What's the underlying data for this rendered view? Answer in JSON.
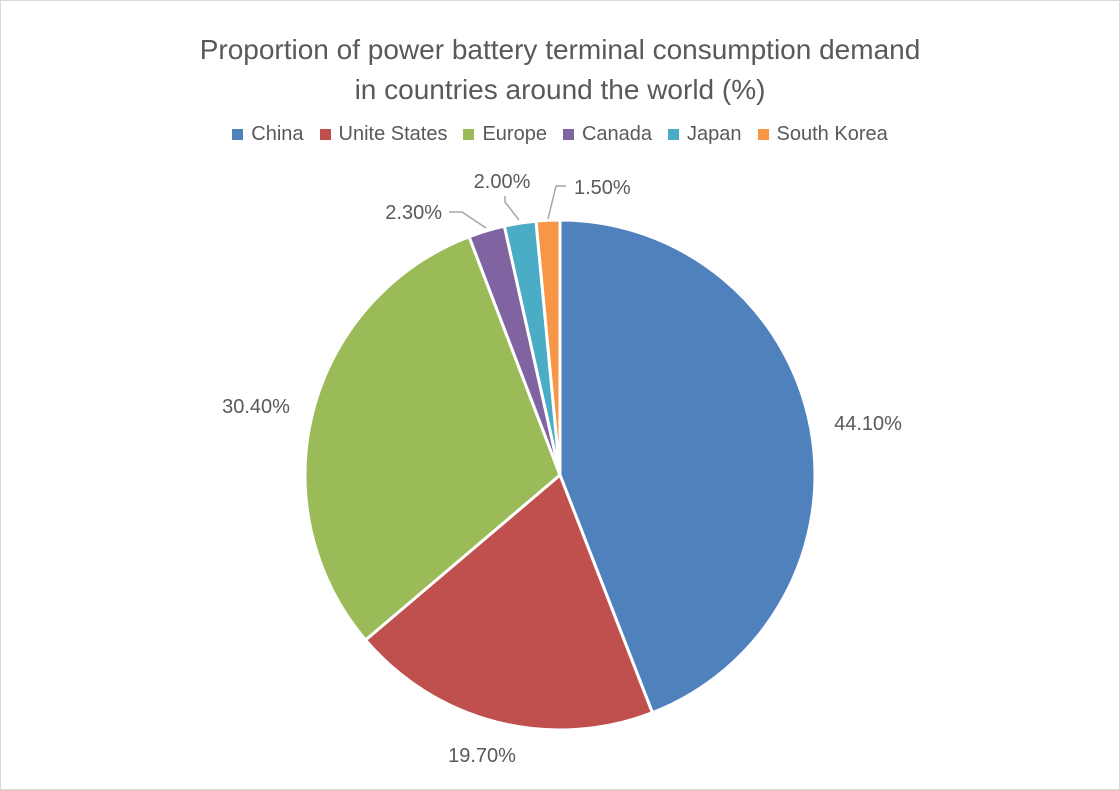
{
  "chart_data": {
    "type": "pie",
    "title": "Proportion of power battery terminal consumption demand in countries around the world (%)",
    "title_lines": [
      "Proportion of power battery terminal consumption demand",
      "in countries around the world (%)"
    ],
    "legend_position": "top",
    "slices": [
      {
        "name": "China",
        "value": 44.1,
        "label": "44.10%",
        "color": "#4f81bd"
      },
      {
        "name": "Unite States",
        "value": 19.7,
        "label": "19.70%",
        "color": "#c0504d"
      },
      {
        "name": "Europe",
        "value": 30.4,
        "label": "30.40%",
        "color": "#9bbb59"
      },
      {
        "name": "Canada",
        "value": 2.3,
        "label": "2.30%",
        "color": "#8064a2"
      },
      {
        "name": "Japan",
        "value": 2.0,
        "label": "2.00%",
        "color": "#4bacc6"
      },
      {
        "name": "South Korea",
        "value": 1.5,
        "label": "1.50%",
        "color": "#f79646"
      }
    ]
  }
}
